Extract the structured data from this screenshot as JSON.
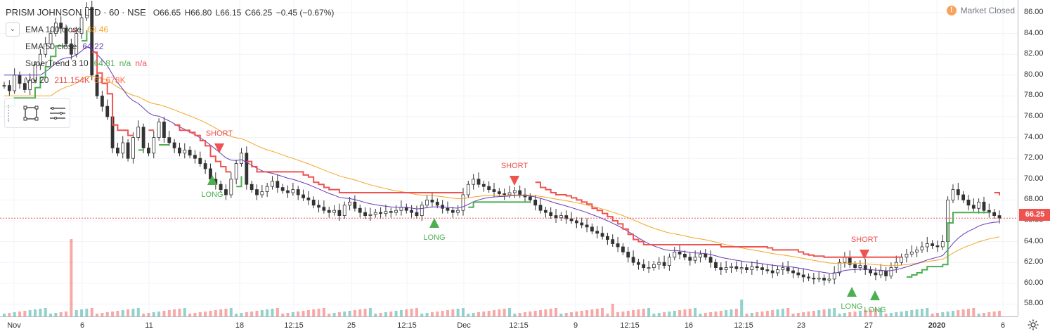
{
  "symbol": {
    "title": "PRISM JOHNSON LTD · 60 · NSE",
    "open": "O66.65",
    "high": "H66.80",
    "low": "L66.15",
    "close": "C66.25",
    "change": "−0.45 (−0.67%)"
  },
  "indicators": [
    {
      "name": "EMA 100 close",
      "values": [
        "63.46"
      ],
      "color": "#f5a623"
    },
    {
      "name": "EMA 50 close",
      "values": [
        "64.22"
      ],
      "color": "#673ab7"
    },
    {
      "name": "SuperTrend 3 10",
      "values": [
        "64.81",
        "n/a",
        "n/a"
      ],
      "colors": [
        "#4caf50",
        "#4caf50",
        "#ef5350"
      ]
    },
    {
      "name": "Vol 20",
      "values": [
        "211.154K",
        "61.678K"
      ],
      "colors": [
        "#ef5350",
        "#ff7043"
      ]
    }
  ],
  "status": {
    "label": "Market Closed",
    "icon": "!"
  },
  "price_axis": {
    "ticks": [
      "86.00",
      "84.00",
      "82.00",
      "80.00",
      "78.00",
      "76.00",
      "74.00",
      "72.00",
      "70.00",
      "68.00",
      "66.00",
      "64.00",
      "62.00",
      "60.00",
      "58.00"
    ],
    "current": "66.25"
  },
  "time_axis": {
    "labels": [
      {
        "text": "Nov",
        "bold": false
      },
      {
        "text": "6",
        "bold": false
      },
      {
        "text": "11",
        "bold": false
      },
      {
        "text": "18",
        "bold": false
      },
      {
        "text": "12:15",
        "bold": false
      },
      {
        "text": "25",
        "bold": false
      },
      {
        "text": "12:15",
        "bold": false
      },
      {
        "text": "Dec",
        "bold": false
      },
      {
        "text": "12:15",
        "bold": false
      },
      {
        "text": "9",
        "bold": false
      },
      {
        "text": "12:15",
        "bold": false
      },
      {
        "text": "16",
        "bold": false
      },
      {
        "text": "12:15",
        "bold": false
      },
      {
        "text": "23",
        "bold": false
      },
      {
        "text": "27",
        "bold": false
      },
      {
        "text": "2020",
        "bold": true
      },
      {
        "text": "6",
        "bold": false
      }
    ]
  },
  "signals": [
    {
      "text": "SHORT",
      "type": "short"
    },
    {
      "text": "LONG",
      "type": "long"
    },
    {
      "text": "SHORT",
      "type": "short"
    },
    {
      "text": "LONG",
      "type": "long"
    },
    {
      "text": "SHORT",
      "type": "short"
    },
    {
      "text": "LONG",
      "type": "long"
    },
    {
      "text": "LONG",
      "type": "long"
    }
  ],
  "colors": {
    "up": "#26a69a",
    "down": "#ef5350",
    "candle": "#333333",
    "ema100": "#f5a623",
    "ema50": "#673ab7",
    "st_up": "#4caf50",
    "st_down": "#ef5350"
  },
  "chart_data": {
    "type": "candlestick",
    "ylim": [
      57,
      87
    ],
    "close_series": [
      79,
      78.5,
      80,
      79.2,
      78.6,
      79.5,
      81,
      82,
      83,
      84,
      85,
      84.5,
      83,
      82,
      84,
      85.5,
      86.5,
      80,
      78,
      77,
      76,
      73,
      72.5,
      73.5,
      72,
      74,
      75,
      73,
      72.5,
      74,
      75.5,
      74,
      73.5,
      73,
      72.5,
      72.8,
      72.3,
      72,
      71.5,
      71,
      70,
      69.5,
      69,
      68.5,
      70,
      71.5,
      72.5,
      69.5,
      69,
      68.5,
      68.8,
      69.3,
      69.8,
      69.2,
      68.9,
      68.7,
      69,
      68.5,
      68.2,
      68,
      67.5,
      67.3,
      67,
      66.8,
      67,
      66.5,
      67.5,
      67.8,
      67.2,
      66.8,
      66.5,
      66.6,
      66.8,
      66.7,
      66.9,
      66.8,
      67,
      67.3,
      67,
      66.8,
      66.5,
      67.5,
      68,
      67.8,
      67.5,
      67.2,
      67,
      66.8,
      67,
      68.5,
      69.5,
      70,
      69.5,
      69.3,
      69,
      68.8,
      68.6,
      68.5,
      68.7,
      68.9,
      68.5,
      68.3,
      68,
      67.5,
      67,
      66.8,
      66.5,
      66.3,
      66.5,
      66.2,
      66,
      65.8,
      65.6,
      65.4,
      65,
      64.8,
      64.5,
      64.2,
      63.8,
      63.5,
      63,
      62.5,
      62,
      61.8,
      61.5,
      61.5,
      61.8,
      62,
      61.7,
      62.5,
      63,
      62.8,
      62.5,
      62.2,
      62.5,
      62.8,
      62.5,
      62,
      61.5,
      61.3,
      61.5,
      61.6,
      61.4,
      61.5,
      61.3,
      61.6,
      61.5,
      61.3,
      61.2,
      61,
      61.3,
      61.5,
      61.2,
      61,
      60.8,
      60.6,
      60.5,
      60.4,
      60.5,
      60.3,
      60.4,
      61,
      62,
      62.5,
      61.8,
      61.5,
      61.7,
      61.3,
      61,
      60.8,
      61.2,
      60.7,
      61.5,
      62,
      62.5,
      62.8,
      63,
      63.2,
      63.5,
      63.8,
      63.6,
      63.5,
      64,
      68,
      69,
      68.5,
      68,
      67.5,
      67.2,
      67.8,
      67,
      66.8,
      66.5,
      66.25
    ]
  }
}
